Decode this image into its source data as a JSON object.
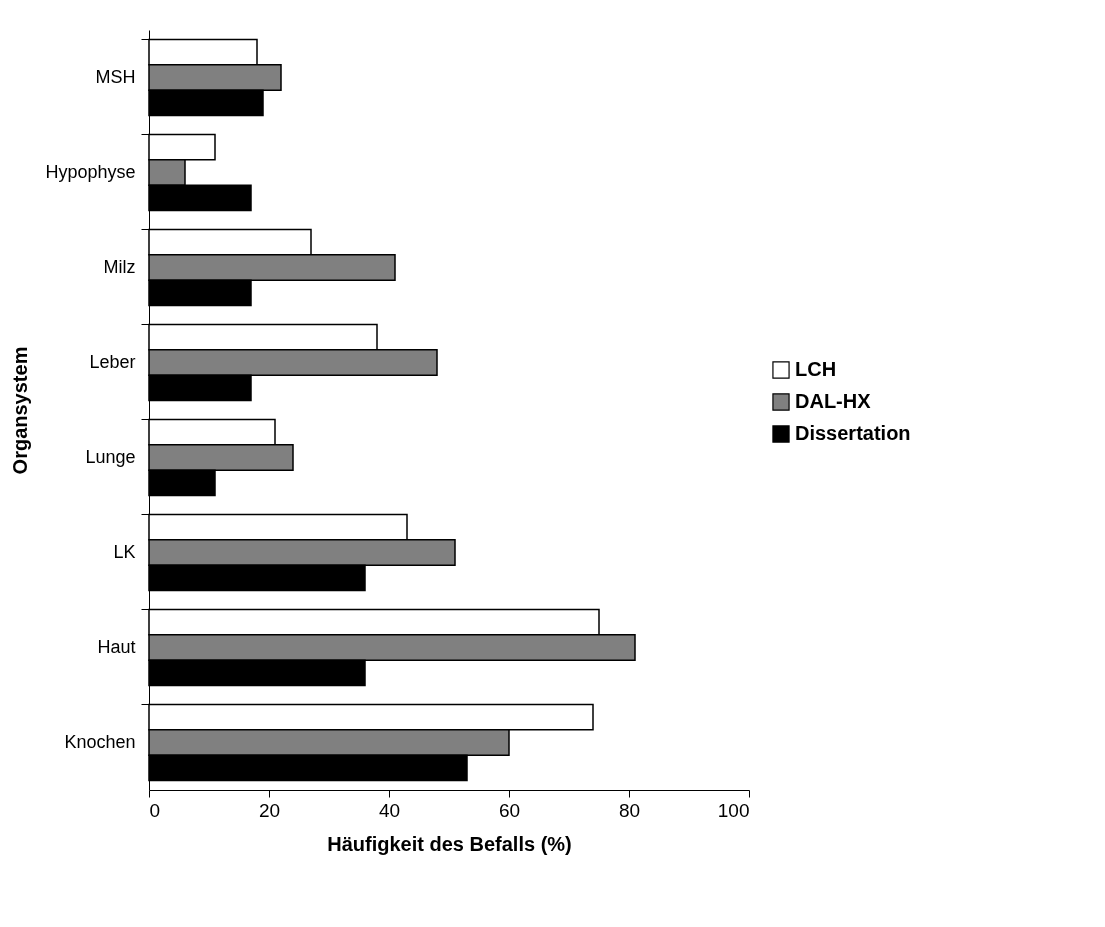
{
  "chart_data": {
    "type": "bar",
    "orientation": "horizontal",
    "xlabel": "Häufigkeit des Befalls (%)",
    "ylabel": "Organsystem",
    "categories": [
      "MSH",
      "Hypophyse",
      "Milz",
      "Leber",
      "Lunge",
      "LK",
      "Haut",
      "Knochen"
    ],
    "series": [
      {
        "name": "LCH",
        "color": "#ffffff",
        "values": [
          18,
          11,
          27,
          38,
          21,
          43,
          75,
          74
        ]
      },
      {
        "name": "DAL-HX",
        "color": "#808080",
        "values": [
          22,
          6,
          41,
          48,
          24,
          51,
          81,
          60
        ]
      },
      {
        "name": "Dissertation",
        "color": "#000000",
        "values": [
          19,
          17,
          17,
          17,
          11,
          36,
          36,
          53
        ]
      }
    ],
    "xlim": [
      0,
      100
    ],
    "xticks": [
      0,
      20,
      40,
      60,
      80,
      100
    ],
    "grid": false,
    "legend": "right"
  }
}
